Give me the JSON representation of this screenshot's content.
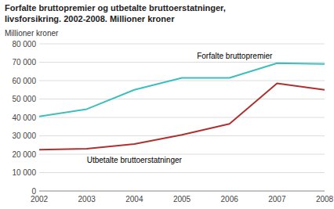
{
  "chart_data": {
    "type": "line",
    "title": "Forfalte bruttopremier og utbetalte bruttoerstatninger,",
    "subtitle": "livsforsikring. 2002-2008. Millioner kroner",
    "y_label": "Millioner kroner",
    "x": [
      2002,
      2003,
      2004,
      2005,
      2006,
      2007,
      2008
    ],
    "series": [
      {
        "name": "Forfalte bruttopremier",
        "color": "#3dbfbf",
        "values": [
          40500,
          44500,
          55000,
          61500,
          61500,
          69500,
          69000
        ]
      },
      {
        "name": "Utbetalte bruttoerstatninger",
        "color": "#b03030",
        "values": [
          22500,
          23000,
          25500,
          30500,
          36500,
          58500,
          55000
        ]
      }
    ],
    "xlim": [
      2002,
      2008
    ],
    "xticks": [
      2002,
      2003,
      2004,
      2005,
      2006,
      2007,
      2008
    ],
    "ylim": [
      0,
      80000
    ],
    "yticks": [
      0,
      {
        "value": 10000,
        "label": "10 000"
      },
      {
        "value": 20000,
        "label": "20 000"
      },
      {
        "value": 30000,
        "label": "30 000"
      },
      {
        "value": 40000,
        "label": "40 000"
      },
      {
        "value": 50000,
        "label": "50 000"
      },
      {
        "value": 60000,
        "label": "60 000"
      },
      {
        "value": 70000,
        "label": "70 000"
      },
      {
        "value": 80000,
        "label": "80 000"
      }
    ],
    "grid": true
  }
}
